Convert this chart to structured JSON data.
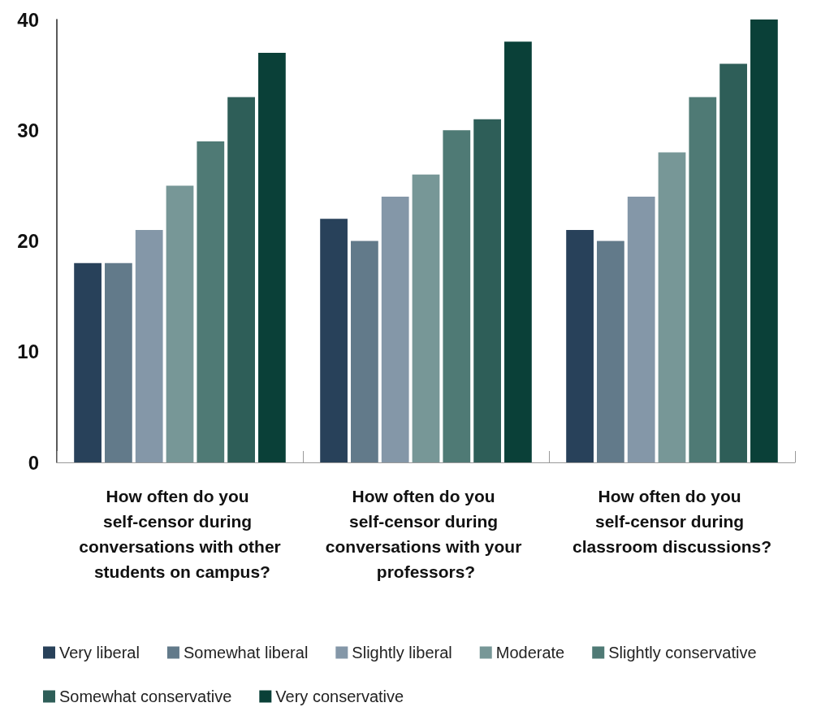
{
  "chart_data": {
    "type": "bar",
    "categories": [
      "How often do you self-censor during conversations with other students on campus?",
      "How often do you self-censor during conversations with your professors?",
      "How often do you self-censor during classroom discussions?"
    ],
    "series": [
      {
        "name": "Very liberal",
        "color": "#28415a",
        "values": [
          18,
          22,
          21
        ]
      },
      {
        "name": "Somewhat liberal",
        "color": "#627a8a",
        "values": [
          18,
          20,
          20
        ]
      },
      {
        "name": "Slightly liberal",
        "color": "#8497a8",
        "values": [
          21,
          24,
          24
        ]
      },
      {
        "name": "Moderate",
        "color": "#779797",
        "values": [
          25,
          26,
          28
        ]
      },
      {
        "name": "Slightly conservative",
        "color": "#4f7a75",
        "values": [
          29,
          30,
          33
        ]
      },
      {
        "name": "Somewhat conservative",
        "color": "#2e5e58",
        "values": [
          33,
          31,
          36
        ]
      },
      {
        "name": "Very conservative",
        "color": "#0a4038",
        "values": [
          37,
          38,
          40
        ]
      }
    ],
    "ylim": [
      0,
      40
    ],
    "yticks": [
      0,
      10,
      20,
      30,
      40
    ],
    "grid": false,
    "legend": "bottom"
  }
}
